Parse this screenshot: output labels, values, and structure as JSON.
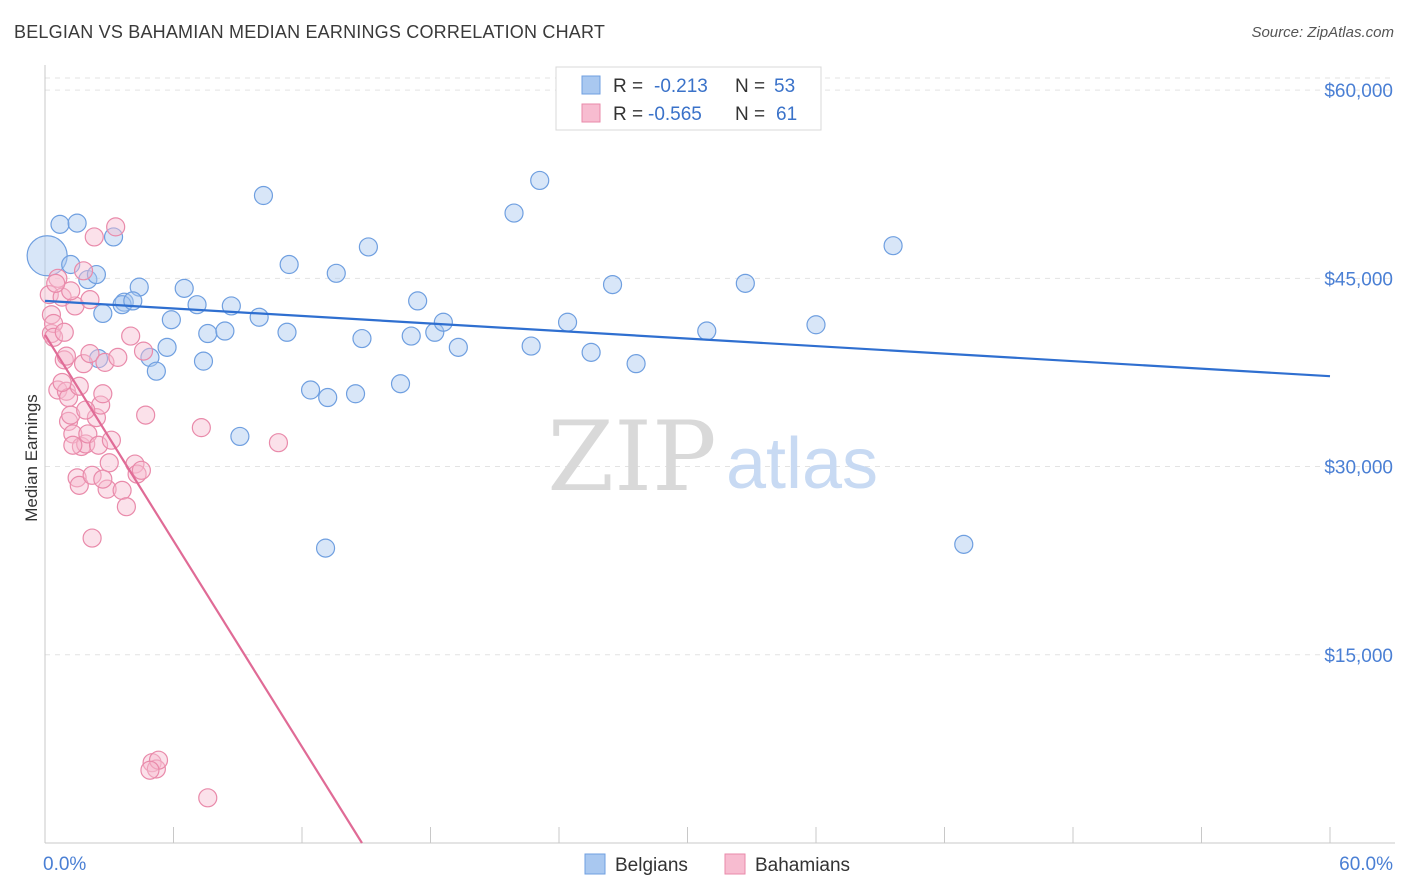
{
  "title": "BELGIAN VS BAHAMIAN MEDIAN EARNINGS CORRELATION CHART",
  "source": "Source: ZipAtlas.com",
  "watermark": {
    "zip": "ZIP",
    "atlas": "atlas"
  },
  "legend": {
    "rows": [
      {
        "r_label": "R =",
        "r_value": "-0.213",
        "n_label": "N =",
        "n_value": "53",
        "color": "#a9c8f0",
        "stroke": "#6f9fe0"
      },
      {
        "r_label": "R =",
        "r_value": "-0.565",
        "n_label": "N =",
        "n_value": "61",
        "color": "#f7bcd0",
        "stroke": "#e98aaa"
      }
    ]
  },
  "bottom_legend": [
    {
      "label": "Belgians",
      "color": "#a9c8f0",
      "stroke": "#6f9fe0"
    },
    {
      "label": "Bahamians",
      "color": "#f7bcd0",
      "stroke": "#e98aaa"
    }
  ],
  "chart_data": {
    "type": "scatter",
    "title": "BELGIAN VS BAHAMIAN MEDIAN EARNINGS CORRELATION CHART",
    "xlabel": "",
    "ylabel": "Median Earnings",
    "xlim": [
      0,
      60
    ],
    "ylim": [
      0,
      62000
    ],
    "x_tick_labels": [
      "0.0%",
      "60.0%"
    ],
    "y_ticks": [
      15000,
      30000,
      45000,
      60000
    ],
    "y_tick_labels": [
      "$15,000",
      "$30,000",
      "$45,000",
      "$60,000"
    ],
    "grid": true,
    "series": [
      {
        "name": "Belgians",
        "color": "#6f9fe0",
        "fill": "#a9c8f0",
        "trend": {
          "x": [
            0,
            60
          ],
          "y": [
            43200,
            37200
          ],
          "color": "#2f6fd0"
        },
        "points": [
          [
            0.1,
            46800
          ],
          [
            0.7,
            49300
          ],
          [
            1.2,
            46100
          ],
          [
            1.5,
            49400
          ],
          [
            2.0,
            44900
          ],
          [
            2.4,
            45300
          ],
          [
            2.7,
            42200
          ],
          [
            3.2,
            48300
          ],
          [
            3.7,
            43100
          ],
          [
            4.4,
            44300
          ],
          [
            3.6,
            42900
          ],
          [
            4.9,
            38700
          ],
          [
            5.7,
            39500
          ],
          [
            5.9,
            41700
          ],
          [
            7.1,
            42900
          ],
          [
            7.6,
            40600
          ],
          [
            8.4,
            40800
          ],
          [
            8.7,
            42800
          ],
          [
            10.0,
            41900
          ],
          [
            11.3,
            40700
          ],
          [
            10.2,
            51600
          ],
          [
            11.4,
            46100
          ],
          [
            12.4,
            36100
          ],
          [
            13.2,
            35500
          ],
          [
            13.6,
            45400
          ],
          [
            14.5,
            35800
          ],
          [
            14.8,
            40200
          ],
          [
            15.1,
            47500
          ],
          [
            16.6,
            36600
          ],
          [
            17.1,
            40400
          ],
          [
            17.4,
            43200
          ],
          [
            18.2,
            40700
          ],
          [
            18.6,
            41500
          ],
          [
            19.3,
            39500
          ],
          [
            21.9,
            50200
          ],
          [
            22.7,
            39600
          ],
          [
            23.1,
            52800
          ],
          [
            24.4,
            41500
          ],
          [
            25.5,
            39100
          ],
          [
            26.5,
            44500
          ],
          [
            27.6,
            38200
          ],
          [
            32.7,
            44600
          ],
          [
            30.9,
            40800
          ],
          [
            36.0,
            41300
          ],
          [
            39.6,
            47600
          ],
          [
            42.9,
            23800
          ],
          [
            13.1,
            23500
          ],
          [
            9.1,
            32400
          ],
          [
            7.4,
            38400
          ],
          [
            5.2,
            37600
          ],
          [
            2.5,
            38600
          ],
          [
            6.5,
            44200
          ],
          [
            4.1,
            43200
          ]
        ]
      },
      {
        "name": "Bahamians",
        "color": "#e98aaa",
        "fill": "#f7bcd0",
        "trend": {
          "x": [
            0,
            14.8
          ],
          "y": [
            40500,
            0
          ],
          "color": "#e06b96"
        },
        "points": [
          [
            0.2,
            43700
          ],
          [
            0.3,
            42100
          ],
          [
            0.3,
            40600
          ],
          [
            0.4,
            41400
          ],
          [
            0.4,
            40300
          ],
          [
            0.6,
            45000
          ],
          [
            0.6,
            36100
          ],
          [
            0.8,
            43500
          ],
          [
            0.9,
            40700
          ],
          [
            0.9,
            38500
          ],
          [
            1.0,
            36000
          ],
          [
            1.1,
            35500
          ],
          [
            1.1,
            33600
          ],
          [
            1.2,
            34100
          ],
          [
            1.3,
            32600
          ],
          [
            1.4,
            42800
          ],
          [
            1.5,
            29100
          ],
          [
            1.6,
            36400
          ],
          [
            1.6,
            28500
          ],
          [
            1.7,
            31600
          ],
          [
            1.8,
            45600
          ],
          [
            1.8,
            38200
          ],
          [
            1.9,
            31800
          ],
          [
            2.0,
            32600
          ],
          [
            2.1,
            39000
          ],
          [
            2.1,
            43300
          ],
          [
            2.2,
            29300
          ],
          [
            2.3,
            48300
          ],
          [
            2.4,
            33900
          ],
          [
            2.5,
            31700
          ],
          [
            2.6,
            34900
          ],
          [
            2.7,
            35800
          ],
          [
            2.8,
            38300
          ],
          [
            2.9,
            28200
          ],
          [
            3.0,
            30300
          ],
          [
            3.1,
            32100
          ],
          [
            3.3,
            49100
          ],
          [
            3.4,
            38700
          ],
          [
            3.6,
            28100
          ],
          [
            3.8,
            26800
          ],
          [
            4.0,
            40400
          ],
          [
            4.2,
            30200
          ],
          [
            4.3,
            29400
          ],
          [
            4.5,
            29700
          ],
          [
            4.6,
            39200
          ],
          [
            4.7,
            34100
          ],
          [
            5.0,
            6400
          ],
          [
            5.2,
            5900
          ],
          [
            5.3,
            6600
          ],
          [
            7.3,
            33100
          ],
          [
            7.6,
            3600
          ],
          [
            10.9,
            31900
          ],
          [
            2.2,
            24300
          ],
          [
            1.2,
            44000
          ],
          [
            0.5,
            44600
          ],
          [
            0.8,
            36700
          ],
          [
            1.0,
            38800
          ],
          [
            1.3,
            31700
          ],
          [
            1.9,
            34500
          ],
          [
            2.7,
            29000
          ],
          [
            4.9,
            5800
          ]
        ]
      }
    ]
  }
}
